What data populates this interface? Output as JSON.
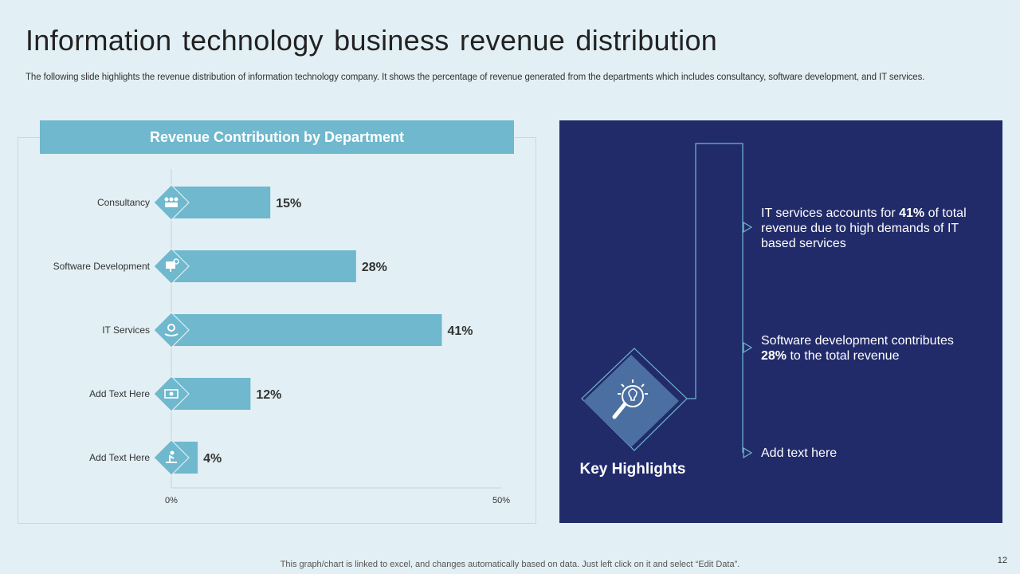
{
  "title": "Information technology business revenue distribution",
  "subtitle": "The following slide highlights the revenue distribution of information technology company. It shows the percentage of revenue generated from the departments which includes consultancy, software development, and IT services.",
  "chart_data": {
    "type": "bar",
    "orientation": "horizontal",
    "title": "Revenue Contribution by Department",
    "categories": [
      "Consultancy",
      "Software Development",
      "IT Services",
      "Add Text Here",
      "Add Text Here"
    ],
    "values": [
      15,
      28,
      41,
      12,
      4
    ],
    "value_labels": [
      "15%",
      "28%",
      "41%",
      "12%",
      "4%"
    ],
    "icons": [
      "team-icon",
      "computer-network-icon",
      "hand-gear-icon",
      "money-icon",
      "person-desk-icon"
    ],
    "xlim": [
      0,
      50
    ],
    "xticks": [
      "0%",
      "50%"
    ],
    "bar_color": "#6fb8cd",
    "xlabel": "",
    "ylabel": ""
  },
  "highlights": {
    "heading": "Key Highlights",
    "items": [
      {
        "pre": "IT services accounts for ",
        "bold": "41%",
        "post": " of total revenue due to high demands of IT based services"
      },
      {
        "pre": "Software development contributes ",
        "bold": "28%",
        "post": " to the total revenue"
      },
      {
        "pre": "Add text here",
        "bold": "",
        "post": ""
      }
    ]
  },
  "footnote": "This graph/chart is linked to excel,  and changes automatically based on data. Just left click on it and select “Edit Data”.",
  "page_number": "12",
  "colors": {
    "panel": "#222b6a",
    "accent": "#6fb8cd",
    "background": "#e2eff4"
  }
}
